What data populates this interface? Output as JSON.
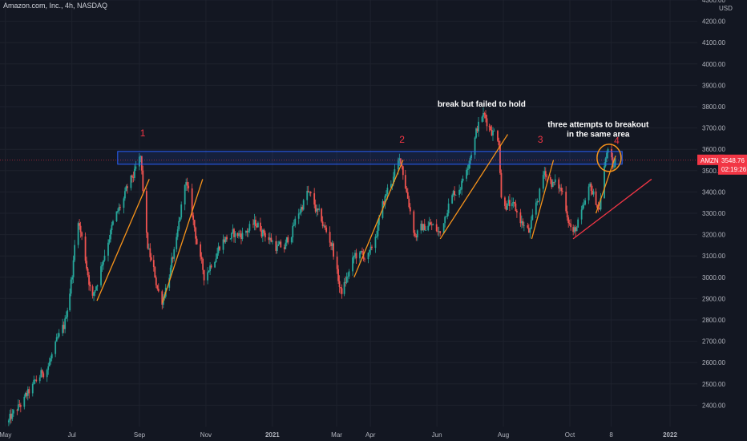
{
  "chart_title": "Amazon.com, Inc., 4h, NASDAQ",
  "colors": {
    "background": "#131722",
    "grid": "#1e222d",
    "up": "#26a69a",
    "down": "#ef5350",
    "trend": "#f7931a",
    "support": "#f23645",
    "zone": "#2962ff",
    "pricetag": "#f23645"
  },
  "chart_data": {
    "type": "candlestick",
    "title": "Amazon.com, Inc., 4h, NASDAQ",
    "y_unit": "USD",
    "ylim": [
      2300,
      4300
    ],
    "y_ticks": [
      2400,
      2500,
      2600,
      2700,
      2800,
      2900,
      3000,
      3100,
      3200,
      3300,
      3400,
      3500,
      3600,
      3700,
      3800,
      3900,
      4000,
      4100,
      4200,
      4300
    ],
    "x_ticks": [
      "May",
      "Jul",
      "Sep",
      "Nov",
      "2021",
      "Mar",
      "Apr",
      "Jun",
      "Aug",
      "Oct",
      "8",
      "2022"
    ],
    "price_anchors": [
      {
        "date": "2020-05-04",
        "price": 2320
      },
      {
        "date": "2020-05-22",
        "price": 2450
      },
      {
        "date": "2020-06-10",
        "price": 2600
      },
      {
        "date": "2020-06-24",
        "price": 2760
      },
      {
        "date": "2020-07-02",
        "price": 3050
      },
      {
        "date": "2020-07-06",
        "price": 3300
      },
      {
        "date": "2020-07-13",
        "price": 3100
      },
      {
        "date": "2020-07-20",
        "price": 2900
      },
      {
        "date": "2020-08-04",
        "price": 3200
      },
      {
        "date": "2020-09-02",
        "price": 3550
      },
      {
        "date": "2020-09-08",
        "price": 3150
      },
      {
        "date": "2020-09-21",
        "price": 2880
      },
      {
        "date": "2020-10-05",
        "price": 3150
      },
      {
        "date": "2020-10-13",
        "price": 3460
      },
      {
        "date": "2020-10-30",
        "price": 3000
      },
      {
        "date": "2020-11-16",
        "price": 3180
      },
      {
        "date": "2020-12-02",
        "price": 3200
      },
      {
        "date": "2020-12-18",
        "price": 3250
      },
      {
        "date": "2021-01-04",
        "price": 3150
      },
      {
        "date": "2021-01-11",
        "price": 3120
      },
      {
        "date": "2021-02-02",
        "price": 3400
      },
      {
        "date": "2021-02-25",
        "price": 3150
      },
      {
        "date": "2021-03-05",
        "price": 2920
      },
      {
        "date": "2021-03-18",
        "price": 3100
      },
      {
        "date": "2021-04-01",
        "price": 3100
      },
      {
        "date": "2021-04-16",
        "price": 3400
      },
      {
        "date": "2021-04-29",
        "price": 3550
      },
      {
        "date": "2021-05-12",
        "price": 3200
      },
      {
        "date": "2021-05-25",
        "price": 3250
      },
      {
        "date": "2021-06-04",
        "price": 3200
      },
      {
        "date": "2021-06-11",
        "price": 3350
      },
      {
        "date": "2021-06-24",
        "price": 3450
      },
      {
        "date": "2021-07-08",
        "price": 3700
      },
      {
        "date": "2021-07-13",
        "price": 3760
      },
      {
        "date": "2021-07-28",
        "price": 3650
      },
      {
        "date": "2021-07-30",
        "price": 3380
      },
      {
        "date": "2021-08-13",
        "price": 3300
      },
      {
        "date": "2021-08-25",
        "price": 3200
      },
      {
        "date": "2021-09-08",
        "price": 3500
      },
      {
        "date": "2021-09-14",
        "price": 3450
      },
      {
        "date": "2021-09-24",
        "price": 3400
      },
      {
        "date": "2021-10-04",
        "price": 3200
      },
      {
        "date": "2021-10-13",
        "price": 3300
      },
      {
        "date": "2021-10-20",
        "price": 3420
      },
      {
        "date": "2021-10-28",
        "price": 3320
      },
      {
        "date": "2021-11-04",
        "price": 3600
      },
      {
        "date": "2021-11-10",
        "price": 3500
      },
      {
        "date": "2021-11-12",
        "price": 3548.76
      }
    ],
    "resistance_zone": {
      "low": 3530,
      "high": 3590
    },
    "support_line": [
      {
        "date": "2021-10-04",
        "price": 3180
      },
      {
        "date": "2021-12-15",
        "price": 3460
      }
    ],
    "trend_lines": [
      {
        "from": {
          "date": "2020-07-24",
          "price": 2890
        },
        "to": {
          "date": "2020-09-10",
          "price": 3460
        }
      },
      {
        "from": {
          "date": "2020-09-22",
          "price": 2880
        },
        "to": {
          "date": "2020-10-29",
          "price": 3460
        }
      },
      {
        "from": {
          "date": "2021-03-17",
          "price": 3000
        },
        "to": {
          "date": "2021-05-01",
          "price": 3550
        }
      },
      {
        "from": {
          "date": "2021-06-04",
          "price": 3180
        },
        "to": {
          "date": "2021-08-05",
          "price": 3670
        }
      },
      {
        "from": {
          "date": "2021-08-27",
          "price": 3180
        },
        "to": {
          "date": "2021-09-16",
          "price": 3550
        }
      },
      {
        "from": {
          "date": "2021-10-25",
          "price": 3300
        },
        "to": {
          "date": "2021-11-12",
          "price": 3570
        }
      }
    ],
    "circle": {
      "date": "2021-11-06",
      "price": 3560
    },
    "labels": [
      {
        "text": "1",
        "date": "2020-09-04",
        "price": 3660
      },
      {
        "text": "2",
        "date": "2021-04-30",
        "price": 3630
      },
      {
        "text": "3",
        "date": "2021-09-04",
        "price": 3630
      },
      {
        "text": "4",
        "date": "2021-11-13",
        "price": 3625
      }
    ],
    "annotations": [
      {
        "lines": [
          "break but failed to hold"
        ],
        "date": "2021-07-12",
        "price": 3800
      },
      {
        "lines": [
          "three attempts to breakout",
          "in the same area"
        ],
        "date": "2021-10-27",
        "price": 3705
      }
    ],
    "last_price": {
      "symbol": "AMZN",
      "value": "3548.76",
      "countdown": "02:19:26"
    }
  }
}
